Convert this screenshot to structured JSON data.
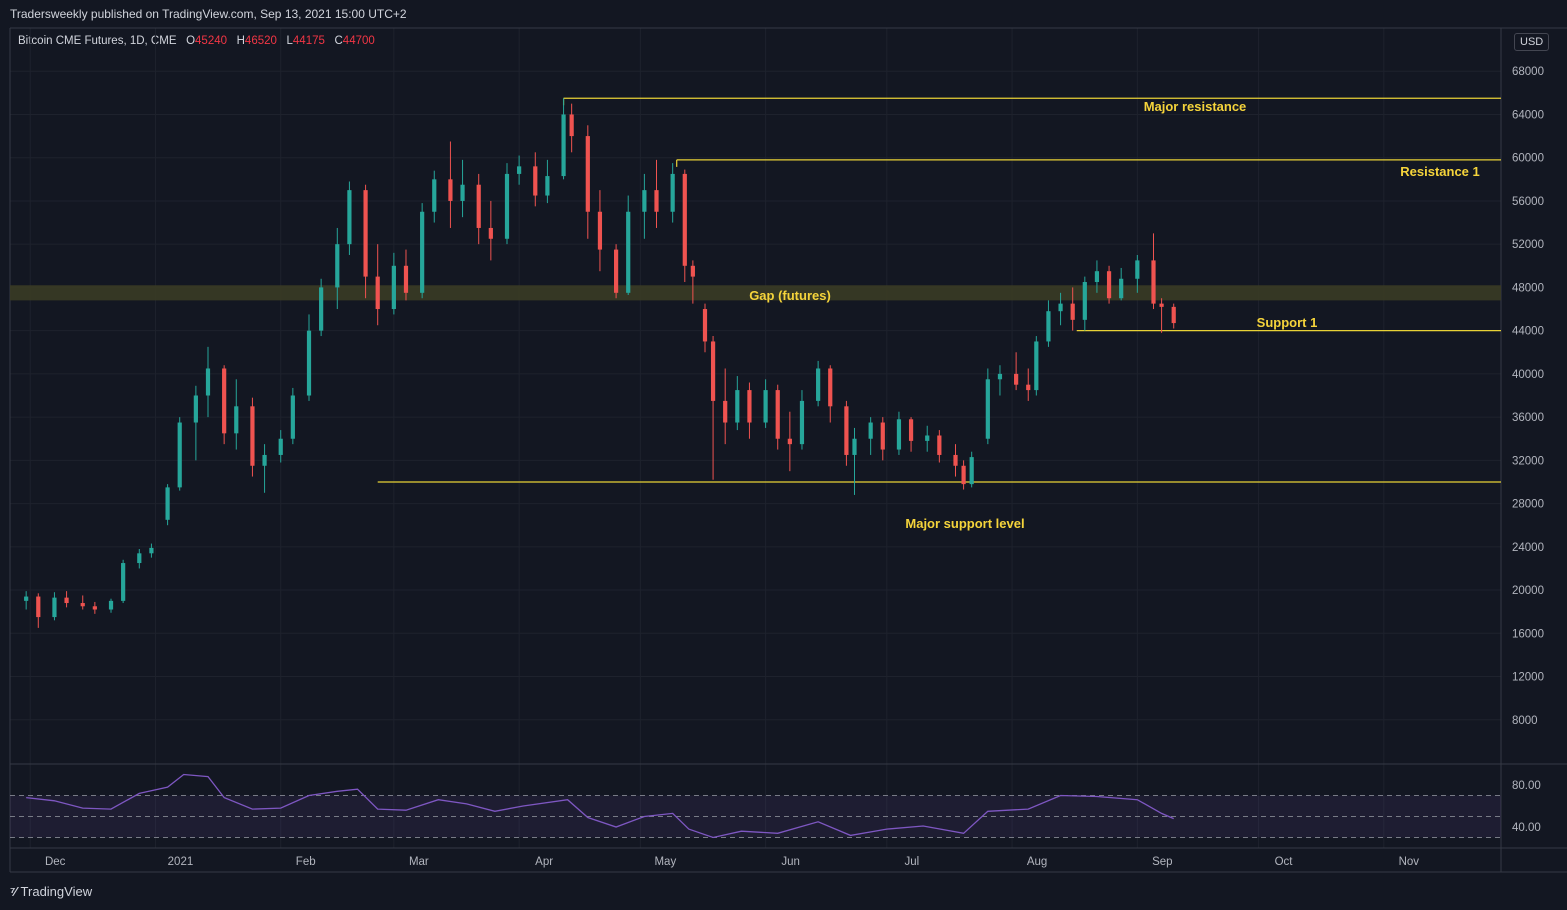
{
  "header": {
    "published": "Tradersweekly published on TradingView.com, Sep 13, 2021 15:00 UTC+2"
  },
  "symbol": {
    "name": "Bitcoin CME Futures, 1D, CME",
    "open_label": "O",
    "open": "45240",
    "high_label": "H",
    "high": "46520",
    "low_label": "L",
    "low": "44175",
    "close_label": "C",
    "close": "44700"
  },
  "currency": "USD",
  "footer": {
    "brand": "TradingView",
    "brand_icon": "tradingview-logo-icon"
  },
  "colors": {
    "background": "#131722",
    "up": "#26a69a",
    "down": "#ef5350",
    "level_line": "#e8d136",
    "annotation_text": "#f5d43b",
    "gap_zone": "#3a3b25",
    "rsi": "#7e57c2"
  },
  "chart_data": {
    "type": "candlestick",
    "ylim": [
      4000,
      72000
    ],
    "y_ticks": [
      8000,
      12000,
      16000,
      20000,
      24000,
      28000,
      32000,
      36000,
      40000,
      44000,
      48000,
      52000,
      56000,
      60000,
      64000,
      68000
    ],
    "x_ticks": [
      "Dec",
      "2021",
      "Feb",
      "Mar",
      "Apr",
      "May",
      "Jun",
      "Jul",
      "Aug",
      "Sep",
      "Oct",
      "Nov"
    ],
    "grid": true,
    "candles": [
      {
        "date": "2020-11-30",
        "o": 19000,
        "h": 19900,
        "l": 18200,
        "c": 19400
      },
      {
        "date": "2020-12-03",
        "o": 19400,
        "h": 19700,
        "l": 16500,
        "c": 17500
      },
      {
        "date": "2020-12-07",
        "o": 17500,
        "h": 19800,
        "l": 17200,
        "c": 19300
      },
      {
        "date": "2020-12-10",
        "o": 19300,
        "h": 19900,
        "l": 18400,
        "c": 18800
      },
      {
        "date": "2020-12-14",
        "o": 18800,
        "h": 19500,
        "l": 18200,
        "c": 18500
      },
      {
        "date": "2020-12-17",
        "o": 18500,
        "h": 18900,
        "l": 17800,
        "c": 18200
      },
      {
        "date": "2020-12-21",
        "o": 18200,
        "h": 19200,
        "l": 17900,
        "c": 19000
      },
      {
        "date": "2020-12-24",
        "o": 19000,
        "h": 22800,
        "l": 18800,
        "c": 22500
      },
      {
        "date": "2020-12-28",
        "o": 22500,
        "h": 23800,
        "l": 22000,
        "c": 23400
      },
      {
        "date": "2020-12-31",
        "o": 23400,
        "h": 24300,
        "l": 23000,
        "c": 23900
      },
      {
        "date": "2021-01-04",
        "o": 26500,
        "h": 29800,
        "l": 26000,
        "c": 29500
      },
      {
        "date": "2021-01-07",
        "o": 29500,
        "h": 36000,
        "l": 29200,
        "c": 35500
      },
      {
        "date": "2021-01-11",
        "o": 35500,
        "h": 38900,
        "l": 32000,
        "c": 38000
      },
      {
        "date": "2021-01-14",
        "o": 38000,
        "h": 42500,
        "l": 36000,
        "c": 40500
      },
      {
        "date": "2021-01-18",
        "o": 40500,
        "h": 40800,
        "l": 33500,
        "c": 34500
      },
      {
        "date": "2021-01-21",
        "o": 34500,
        "h": 39500,
        "l": 33000,
        "c": 37000
      },
      {
        "date": "2021-01-25",
        "o": 37000,
        "h": 37800,
        "l": 30500,
        "c": 31500
      },
      {
        "date": "2021-01-28",
        "o": 31500,
        "h": 33500,
        "l": 29000,
        "c": 32500
      },
      {
        "date": "2021-02-01",
        "o": 32500,
        "h": 34800,
        "l": 31800,
        "c": 34000
      },
      {
        "date": "2021-02-04",
        "o": 34000,
        "h": 38700,
        "l": 33500,
        "c": 38000
      },
      {
        "date": "2021-02-08",
        "o": 38000,
        "h": 45500,
        "l": 37500,
        "c": 44000
      },
      {
        "date": "2021-02-11",
        "o": 44000,
        "h": 48800,
        "l": 43500,
        "c": 48000
      },
      {
        "date": "2021-02-15",
        "o": 48000,
        "h": 53500,
        "l": 46000,
        "c": 52000
      },
      {
        "date": "2021-02-18",
        "o": 52000,
        "h": 57800,
        "l": 51000,
        "c": 57000
      },
      {
        "date": "2021-02-22",
        "o": 57000,
        "h": 57500,
        "l": 47000,
        "c": 49000
      },
      {
        "date": "2021-02-25",
        "o": 49000,
        "h": 52000,
        "l": 44500,
        "c": 46000
      },
      {
        "date": "2021-03-01",
        "o": 46000,
        "h": 51200,
        "l": 45500,
        "c": 50000
      },
      {
        "date": "2021-03-04",
        "o": 50000,
        "h": 51500,
        "l": 46800,
        "c": 47500
      },
      {
        "date": "2021-03-08",
        "o": 47500,
        "h": 55800,
        "l": 47000,
        "c": 55000
      },
      {
        "date": "2021-03-11",
        "o": 55000,
        "h": 58800,
        "l": 54000,
        "c": 58000
      },
      {
        "date": "2021-03-15",
        "o": 58000,
        "h": 61500,
        "l": 53500,
        "c": 56000
      },
      {
        "date": "2021-03-18",
        "o": 56000,
        "h": 59800,
        "l": 54500,
        "c": 57500
      },
      {
        "date": "2021-03-22",
        "o": 57500,
        "h": 58500,
        "l": 52000,
        "c": 53500
      },
      {
        "date": "2021-03-25",
        "o": 53500,
        "h": 56000,
        "l": 50500,
        "c": 52500
      },
      {
        "date": "2021-03-29",
        "o": 52500,
        "h": 59500,
        "l": 52000,
        "c": 58500
      },
      {
        "date": "2021-04-01",
        "o": 58500,
        "h": 60200,
        "l": 57500,
        "c": 59200
      },
      {
        "date": "2021-04-05",
        "o": 59200,
        "h": 60500,
        "l": 55500,
        "c": 56500
      },
      {
        "date": "2021-04-08",
        "o": 56500,
        "h": 59800,
        "l": 55800,
        "c": 58300
      },
      {
        "date": "2021-04-12",
        "o": 58300,
        "h": 65500,
        "l": 58000,
        "c": 64000
      },
      {
        "date": "2021-04-14",
        "o": 64000,
        "h": 65000,
        "l": 60500,
        "c": 62000
      },
      {
        "date": "2021-04-18",
        "o": 62000,
        "h": 63000,
        "l": 52500,
        "c": 55000
      },
      {
        "date": "2021-04-21",
        "o": 55000,
        "h": 57000,
        "l": 49500,
        "c": 51500
      },
      {
        "date": "2021-04-25",
        "o": 51500,
        "h": 52000,
        "l": 47000,
        "c": 47500
      },
      {
        "date": "2021-04-28",
        "o": 47500,
        "h": 56500,
        "l": 47300,
        "c": 55000
      },
      {
        "date": "2021-05-02",
        "o": 55000,
        "h": 58500,
        "l": 52500,
        "c": 57000
      },
      {
        "date": "2021-05-05",
        "o": 57000,
        "h": 59800,
        "l": 53500,
        "c": 55000
      },
      {
        "date": "2021-05-09",
        "o": 55000,
        "h": 59500,
        "l": 54000,
        "c": 58500
      },
      {
        "date": "2021-05-12",
        "o": 58500,
        "h": 58900,
        "l": 48500,
        "c": 50000
      },
      {
        "date": "2021-05-14",
        "o": 50000,
        "h": 50500,
        "l": 46500,
        "c": 49000
      },
      {
        "date": "2021-05-17",
        "o": 46000,
        "h": 46500,
        "l": 42000,
        "c": 43000
      },
      {
        "date": "2021-05-19",
        "o": 43000,
        "h": 43500,
        "l": 30200,
        "c": 37500
      },
      {
        "date": "2021-05-22",
        "o": 37500,
        "h": 40500,
        "l": 33500,
        "c": 35500
      },
      {
        "date": "2021-05-25",
        "o": 35500,
        "h": 39800,
        "l": 34800,
        "c": 38500
      },
      {
        "date": "2021-05-28",
        "o": 38500,
        "h": 39200,
        "l": 34000,
        "c": 35500
      },
      {
        "date": "2021-06-01",
        "o": 35500,
        "h": 39500,
        "l": 35000,
        "c": 38500
      },
      {
        "date": "2021-06-04",
        "o": 38500,
        "h": 39000,
        "l": 33000,
        "c": 34000
      },
      {
        "date": "2021-06-07",
        "o": 34000,
        "h": 36500,
        "l": 31000,
        "c": 33500
      },
      {
        "date": "2021-06-10",
        "o": 33500,
        "h": 38500,
        "l": 33000,
        "c": 37500
      },
      {
        "date": "2021-06-14",
        "o": 37500,
        "h": 41200,
        "l": 37000,
        "c": 40500
      },
      {
        "date": "2021-06-17",
        "o": 40500,
        "h": 40800,
        "l": 35500,
        "c": 37000
      },
      {
        "date": "2021-06-21",
        "o": 37000,
        "h": 37500,
        "l": 31500,
        "c": 32500
      },
      {
        "date": "2021-06-23",
        "o": 32500,
        "h": 35000,
        "l": 28800,
        "c": 34000
      },
      {
        "date": "2021-06-27",
        "o": 34000,
        "h": 36000,
        "l": 32500,
        "c": 35500
      },
      {
        "date": "2021-06-30",
        "o": 35500,
        "h": 36000,
        "l": 32000,
        "c": 33000
      },
      {
        "date": "2021-07-04",
        "o": 33000,
        "h": 36500,
        "l": 32500,
        "c": 35800
      },
      {
        "date": "2021-07-07",
        "o": 35800,
        "h": 36000,
        "l": 32800,
        "c": 33800
      },
      {
        "date": "2021-07-11",
        "o": 33800,
        "h": 35200,
        "l": 32800,
        "c": 34300
      },
      {
        "date": "2021-07-14",
        "o": 34300,
        "h": 34800,
        "l": 31800,
        "c": 32500
      },
      {
        "date": "2021-07-18",
        "o": 32500,
        "h": 33500,
        "l": 30500,
        "c": 31500
      },
      {
        "date": "2021-07-20",
        "o": 31500,
        "h": 32000,
        "l": 29300,
        "c": 29800
      },
      {
        "date": "2021-07-22",
        "o": 29800,
        "h": 32800,
        "l": 29500,
        "c": 32300
      },
      {
        "date": "2021-07-26",
        "o": 34000,
        "h": 40500,
        "l": 33500,
        "c": 39500
      },
      {
        "date": "2021-07-29",
        "o": 39500,
        "h": 40800,
        "l": 38000,
        "c": 40000
      },
      {
        "date": "2021-08-02",
        "o": 40000,
        "h": 42000,
        "l": 38500,
        "c": 39000
      },
      {
        "date": "2021-08-05",
        "o": 39000,
        "h": 40500,
        "l": 37500,
        "c": 38500
      },
      {
        "date": "2021-08-07",
        "o": 38500,
        "h": 43500,
        "l": 38000,
        "c": 43000
      },
      {
        "date": "2021-08-10",
        "o": 43000,
        "h": 46800,
        "l": 42500,
        "c": 45800
      },
      {
        "date": "2021-08-13",
        "o": 45800,
        "h": 47500,
        "l": 44500,
        "c": 46500
      },
      {
        "date": "2021-08-16",
        "o": 46500,
        "h": 48000,
        "l": 44000,
        "c": 45000
      },
      {
        "date": "2021-08-19",
        "o": 45000,
        "h": 49000,
        "l": 44000,
        "c": 48500
      },
      {
        "date": "2021-08-22",
        "o": 48500,
        "h": 50500,
        "l": 47500,
        "c": 49500
      },
      {
        "date": "2021-08-25",
        "o": 49500,
        "h": 50000,
        "l": 46500,
        "c": 47000
      },
      {
        "date": "2021-08-28",
        "o": 47000,
        "h": 49800,
        "l": 46800,
        "c": 48800
      },
      {
        "date": "2021-09-01",
        "o": 48800,
        "h": 51000,
        "l": 47500,
        "c": 50500
      },
      {
        "date": "2021-09-05",
        "o": 50500,
        "h": 53000,
        "l": 46000,
        "c": 46500
      },
      {
        "date": "2021-09-07",
        "o": 46500,
        "h": 47000,
        "l": 43800,
        "c": 46200
      },
      {
        "date": "2021-09-10",
        "o": 46200,
        "h": 46500,
        "l": 44200,
        "c": 44700
      }
    ],
    "rsi": {
      "y_ticks": [
        40,
        80
      ],
      "bands": [
        30,
        50,
        70
      ],
      "ylim": [
        20,
        100
      ],
      "values": [
        {
          "date": "2020-11-30",
          "v": 68
        },
        {
          "date": "2020-12-07",
          "v": 65
        },
        {
          "date": "2020-12-14",
          "v": 58
        },
        {
          "date": "2020-12-21",
          "v": 57
        },
        {
          "date": "2020-12-28",
          "v": 72
        },
        {
          "date": "2021-01-04",
          "v": 78
        },
        {
          "date": "2021-01-08",
          "v": 90
        },
        {
          "date": "2021-01-14",
          "v": 88
        },
        {
          "date": "2021-01-18",
          "v": 68
        },
        {
          "date": "2021-01-25",
          "v": 57
        },
        {
          "date": "2021-02-01",
          "v": 58
        },
        {
          "date": "2021-02-08",
          "v": 70
        },
        {
          "date": "2021-02-15",
          "v": 74
        },
        {
          "date": "2021-02-20",
          "v": 76
        },
        {
          "date": "2021-02-25",
          "v": 57
        },
        {
          "date": "2021-03-04",
          "v": 56
        },
        {
          "date": "2021-03-12",
          "v": 66
        },
        {
          "date": "2021-03-19",
          "v": 62
        },
        {
          "date": "2021-03-26",
          "v": 55
        },
        {
          "date": "2021-04-02",
          "v": 60
        },
        {
          "date": "2021-04-13",
          "v": 66
        },
        {
          "date": "2021-04-18",
          "v": 49
        },
        {
          "date": "2021-04-25",
          "v": 40
        },
        {
          "date": "2021-05-02",
          "v": 50
        },
        {
          "date": "2021-05-09",
          "v": 53
        },
        {
          "date": "2021-05-13",
          "v": 38
        },
        {
          "date": "2021-05-19",
          "v": 30
        },
        {
          "date": "2021-05-26",
          "v": 36
        },
        {
          "date": "2021-06-04",
          "v": 34
        },
        {
          "date": "2021-06-14",
          "v": 45
        },
        {
          "date": "2021-06-22",
          "v": 32
        },
        {
          "date": "2021-07-01",
          "v": 38
        },
        {
          "date": "2021-07-10",
          "v": 41
        },
        {
          "date": "2021-07-20",
          "v": 34
        },
        {
          "date": "2021-07-26",
          "v": 55
        },
        {
          "date": "2021-08-05",
          "v": 57
        },
        {
          "date": "2021-08-13",
          "v": 70
        },
        {
          "date": "2021-08-22",
          "v": 69
        },
        {
          "date": "2021-09-01",
          "v": 66
        },
        {
          "date": "2021-09-07",
          "v": 53
        },
        {
          "date": "2021-09-10",
          "v": 48
        }
      ]
    },
    "annotations": {
      "major_resistance": {
        "label": "Major resistance",
        "price": 65500,
        "start": "2021-04-12"
      },
      "resistance_1": {
        "label": "Resistance 1",
        "price": 59800,
        "start": "2021-05-10"
      },
      "support_1": {
        "label": "Support 1",
        "price": 44000,
        "start": "2021-08-17"
      },
      "major_support": {
        "label": "Major support level",
        "price": 30000,
        "start": "2021-02-25"
      },
      "gap_zone": {
        "label": "Gap (futures)",
        "low": 46800,
        "high": 48200
      }
    }
  }
}
